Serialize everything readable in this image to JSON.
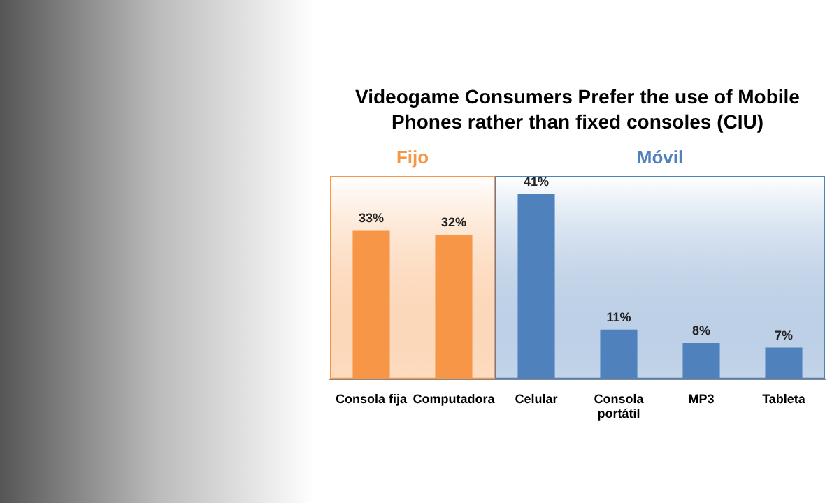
{
  "chart_data": {
    "type": "bar",
    "title": "Videogame Consumers Prefer the use of Mobile Phones rather than fixed consoles (CIU)",
    "categories": [
      "Consola fija",
      "Computadora",
      "Celular",
      "Consola portátil",
      "MP3",
      "Tableta"
    ],
    "values": [
      33,
      32,
      41,
      11,
      8,
      7
    ],
    "colors": [
      "#f79646",
      "#f79646",
      "#4f81bd",
      "#4f81bd",
      "#4f81bd",
      "#4f81bd"
    ],
    "value_labels": [
      "33%",
      "32%",
      "41%",
      "11%",
      "8%",
      "7%"
    ],
    "bands": [
      {
        "axis": "x",
        "from": "Consola fija",
        "to": "Computadora",
        "label": "Fijo",
        "color": "#f79646"
      },
      {
        "axis": "x",
        "from": "Celular",
        "to": "Tableta",
        "label": "Móvil",
        "color": "#4f81bd"
      }
    ],
    "tick_labels": "x",
    "grid": false,
    "legend": false
  }
}
